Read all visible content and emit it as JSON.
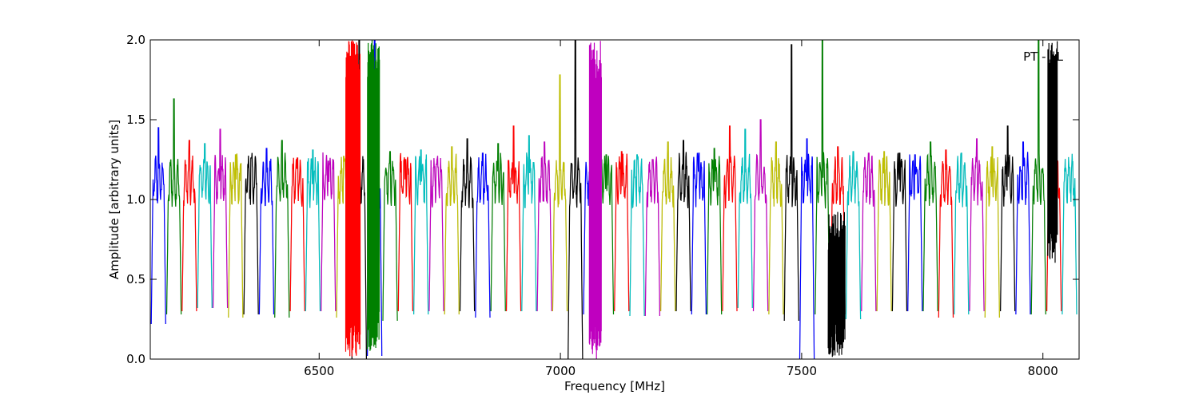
{
  "chart_data": {
    "type": "line",
    "annotation": "PT - LL",
    "xlabel": "Frequency [MHz]",
    "ylabel": "Amplitude [arbitrary units]",
    "xlim": [
      6150,
      8075
    ],
    "ylim": [
      0.0,
      2.0
    ],
    "x_ticks": [
      {
        "value": 6500,
        "label": "6500"
      },
      {
        "value": 7000,
        "label": "7000"
      },
      {
        "value": 7500,
        "label": "7500"
      },
      {
        "value": 8000,
        "label": "8000"
      }
    ],
    "y_ticks": [
      {
        "value": 0.0,
        "label": "0.0"
      },
      {
        "value": 0.5,
        "label": "0.5"
      },
      {
        "value": 1.0,
        "label": "1.0"
      },
      {
        "value": 1.5,
        "label": "1.5"
      },
      {
        "value": 2.0,
        "label": "2.0"
      }
    ],
    "grid": false,
    "legend": "none",
    "background_series_color": "#c0c0c0",
    "color_cycle": [
      "#0000ff",
      "#008000",
      "#ff0000",
      "#00bfbf",
      "#bf00bf",
      "#bfbf00",
      "#000000"
    ],
    "spw_start": 6152,
    "spw_width": 32,
    "spw_count": 60,
    "spw_peaks": [
      1.45,
      1.63,
      1.37,
      1.35,
      1.44,
      1.28,
      1.26,
      1.32,
      1.37,
      1.26,
      1.31,
      1.24,
      1.27,
      2.0,
      2.0,
      1.3,
      1.25,
      1.31,
      1.22,
      1.33,
      1.38,
      1.29,
      1.35,
      1.46,
      1.4,
      1.36,
      1.78,
      2.0,
      1.21,
      1.28,
      1.3,
      1.28,
      1.25,
      1.36,
      1.37,
      1.29,
      1.32,
      1.46,
      1.44,
      1.5,
      1.36,
      1.97,
      1.38,
      2.0,
      1.33,
      1.3,
      1.29,
      1.3,
      1.29,
      1.28,
      1.36,
      1.31,
      1.29,
      1.38,
      1.33,
      1.46,
      1.36,
      2.0,
      1.34,
      1.2
    ],
    "spw_minima": [
      0.22,
      0.28,
      0.3,
      0.32,
      0.32,
      0.26,
      0.28,
      0.28,
      0.26,
      0.3,
      0.3,
      0.3,
      0.26,
      0.0,
      0.02,
      0.24,
      0.3,
      0.28,
      0.3,
      0.28,
      0.3,
      0.26,
      0.3,
      0.3,
      0.3,
      0.3,
      0.3,
      0.0,
      0.28,
      0.28,
      0.3,
      0.27,
      0.27,
      0.3,
      0.3,
      0.28,
      0.28,
      0.3,
      0.32,
      0.3,
      0.28,
      0.24,
      0.0,
      0.28,
      0.28,
      0.25,
      0.3,
      0.3,
      0.3,
      0.3,
      0.3,
      0.26,
      0.28,
      0.3,
      0.26,
      0.3,
      0.28,
      0.28,
      0.3,
      0.28
    ],
    "noisy_bursts": [
      {
        "x": [
          6555,
          6585
        ],
        "y": [
          0.0,
          2.0
        ],
        "color": "#ff0000"
      },
      {
        "x": [
          6600,
          6625
        ],
        "y": [
          0.05,
          2.0
        ],
        "color": "#008000"
      },
      {
        "x": [
          7060,
          7085
        ],
        "y": [
          0.0,
          2.0
        ],
        "color": "#bf00bf"
      },
      {
        "x": [
          7555,
          7590
        ],
        "y": [
          0.0,
          0.93
        ],
        "color": "#000000"
      },
      {
        "x": [
          8010,
          8030
        ],
        "y": [
          0.6,
          2.0
        ],
        "color": "#000000"
      }
    ]
  }
}
